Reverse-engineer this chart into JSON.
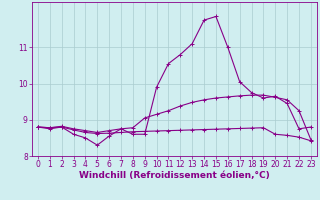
{
  "title": "",
  "xlabel": "Windchill (Refroidissement éolien,°C)",
  "ylabel": "",
  "background_color": "#d0eef0",
  "line_color": "#880088",
  "grid_color": "#aaccd0",
  "x": [
    0,
    1,
    2,
    3,
    4,
    5,
    6,
    7,
    8,
    9,
    10,
    11,
    12,
    13,
    14,
    15,
    16,
    17,
    18,
    19,
    20,
    21,
    22,
    23
  ],
  "line1": [
    8.8,
    8.75,
    8.8,
    8.6,
    8.5,
    8.3,
    8.55,
    8.75,
    8.6,
    8.6,
    9.9,
    10.55,
    10.8,
    11.1,
    11.75,
    11.85,
    11.0,
    10.05,
    9.75,
    9.6,
    9.65,
    9.45,
    8.75,
    8.8
  ],
  "line2": [
    8.8,
    8.78,
    8.82,
    8.75,
    8.7,
    8.65,
    8.7,
    8.75,
    8.78,
    9.05,
    9.15,
    9.25,
    9.38,
    9.48,
    9.55,
    9.6,
    9.63,
    9.66,
    9.68,
    9.68,
    9.62,
    9.55,
    9.25,
    8.45
  ],
  "line3": [
    8.8,
    8.78,
    8.8,
    8.72,
    8.65,
    8.62,
    8.63,
    8.65,
    8.67,
    8.68,
    8.69,
    8.7,
    8.71,
    8.72,
    8.73,
    8.74,
    8.75,
    8.76,
    8.77,
    8.78,
    8.6,
    8.57,
    8.52,
    8.42
  ],
  "xlim": [
    -0.5,
    23.5
  ],
  "ylim": [
    8.0,
    12.25
  ],
  "yticks": [
    8,
    9,
    10,
    11
  ],
  "ytick_labels": [
    "8",
    "9",
    "10",
    "11"
  ],
  "xticks": [
    0,
    1,
    2,
    3,
    4,
    5,
    6,
    7,
    8,
    9,
    10,
    11,
    12,
    13,
    14,
    15,
    16,
    17,
    18,
    19,
    20,
    21,
    22,
    23
  ],
  "font_size": 5.5,
  "xlabel_fontsize": 6.5,
  "tick_fontsize": 5.5
}
